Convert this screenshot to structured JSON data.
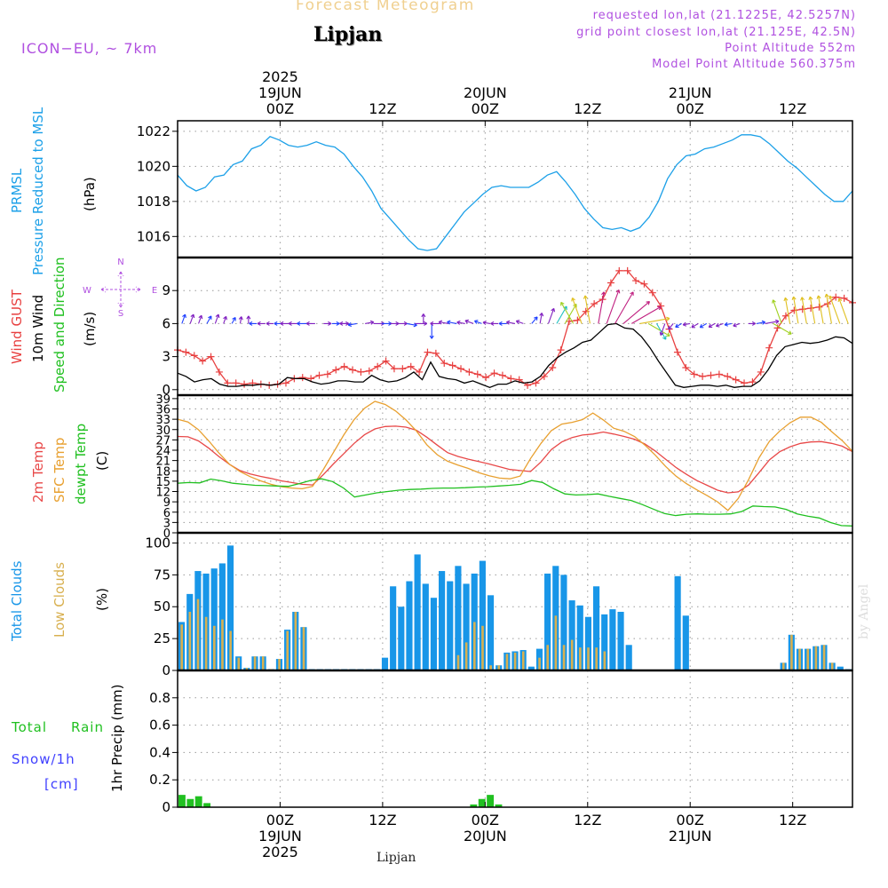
{
  "header": {
    "title": "Forecast Meteogram",
    "location": "Lipjan",
    "model": "ICON−EU, ~ 7km",
    "requested": "requested lon,lat (21.1225E, 42.5257N)",
    "grid_point": "grid point closest lon,lat (21.125E, 42.5N)",
    "point_altitude": "Point Altitude 552m",
    "model_altitude": "Model Point Altitude 560.375m"
  },
  "footer": {
    "location": "Lipjan",
    "watermark": "by Angel"
  },
  "time_axis": {
    "top": [
      {
        "lines": [
          "2025",
          "19JUN",
          "00Z"
        ],
        "pos": 6
      },
      {
        "lines": [
          "12Z"
        ],
        "pos": 18
      },
      {
        "lines": [
          "20JUN",
          "00Z"
        ],
        "pos": 30
      },
      {
        "lines": [
          "12Z"
        ],
        "pos": 42
      },
      {
        "lines": [
          "21JUN",
          "00Z"
        ],
        "pos": 54
      },
      {
        "lines": [
          "12Z"
        ],
        "pos": 66
      }
    ],
    "bottom": [
      {
        "lines": [
          "00Z",
          "19JUN",
          "2025"
        ],
        "pos": 6
      },
      {
        "lines": [
          "12Z"
        ],
        "pos": 18
      },
      {
        "lines": [
          "00Z",
          "20JUN"
        ],
        "pos": 30
      },
      {
        "lines": [
          "12Z"
        ],
        "pos": 42
      },
      {
        "lines": [
          "00Z",
          "21JUN"
        ],
        "pos": 54
      },
      {
        "lines": [
          "12Z"
        ],
        "pos": 66
      }
    ]
  },
  "colors": {
    "pressure": "#1ca0e8",
    "gust": "#e84040",
    "wind": "#000000",
    "temp2m": "#e84848",
    "sfc": "#e8a030",
    "dew": "#20c020",
    "total_clouds": "#1896e8",
    "low_clouds": "#d8b050",
    "rain": "#20c020",
    "snow": "#4040ff",
    "label_purple": "#b050e0"
  },
  "chart_data": [
    {
      "type": "line",
      "panel": "pressure",
      "labels": {
        "line1": "PRMSL",
        "line2": "Pressure Reduced to MSL",
        "unit": "(hPa)"
      },
      "ylim": [
        1014.8,
        1022.6
      ],
      "yticks": [
        1016,
        1018,
        1020,
        1022
      ],
      "x_hours_from": -6,
      "series": [
        {
          "name": "PRMSL",
          "color": "#1ca0e8",
          "values": [
            1019.5,
            1018.9,
            1018.6,
            1018.8,
            1019.4,
            1019.5,
            1020.1,
            1020.3,
            1021.0,
            1021.2,
            1021.7,
            1021.5,
            1021.2,
            1021.1,
            1021.2,
            1021.4,
            1021.2,
            1021.1,
            1020.7,
            1020.0,
            1019.4,
            1018.6,
            1017.6,
            1017.0,
            1016.4,
            1015.8,
            1015.3,
            1015.2,
            1015.3,
            1016.0,
            1016.7,
            1017.4,
            1017.9,
            1018.4,
            1018.8,
            1018.9,
            1018.8,
            1018.8,
            1018.8,
            1019.1,
            1019.5,
            1019.7,
            1019.1,
            1018.4,
            1017.6,
            1017.0,
            1016.5,
            1016.4,
            1016.5,
            1016.3,
            1016.5,
            1017.1,
            1018.0,
            1019.3,
            1020.1,
            1020.6,
            1020.7,
            1021.0,
            1021.1,
            1021.3,
            1021.5,
            1021.8,
            1021.8,
            1021.7,
            1021.3,
            1020.8,
            1020.3,
            1019.9,
            1019.4,
            1018.9,
            1018.4,
            1018.0,
            1018.0,
            1018.6
          ]
        }
      ],
      "grid": true
    },
    {
      "type": "line",
      "panel": "wind",
      "labels": {
        "gust": "Wind GUST",
        "wind": "10m Wind",
        "speed": "Speed and Direction",
        "unit": "(m/s)"
      },
      "ylim": [
        -0.5,
        12
      ],
      "yticks": [
        0,
        3,
        6,
        9
      ],
      "x_hours_from": -6,
      "series": [
        {
          "name": "Wind GUST",
          "color": "#e84040",
          "values": [
            3.6,
            3.4,
            3.1,
            2.6,
            3.0,
            1.6,
            0.6,
            0.6,
            0.5,
            0.6,
            0.5,
            0.4,
            0.5,
            0.6,
            1.0,
            1.1,
            1.0,
            1.3,
            1.4,
            1.8,
            2.1,
            1.8,
            1.6,
            1.7,
            2.1,
            2.6,
            1.9,
            1.9,
            2.1,
            1.6,
            3.4,
            3.3,
            2.4,
            2.2,
            1.9,
            1.6,
            1.4,
            1.1,
            1.5,
            1.3,
            1.0,
            0.9,
            0.4,
            0.6,
            1.2,
            2.0,
            3.6,
            6.2,
            6.3,
            7.1,
            7.8,
            8.2,
            9.7,
            10.8,
            10.8,
            9.9,
            9.6,
            8.8,
            7.6,
            5.5,
            3.4,
            2.0,
            1.4,
            1.2,
            1.3,
            1.4,
            1.2,
            0.9,
            0.6,
            0.7,
            1.6,
            3.8,
            5.6,
            6.7,
            7.2,
            7.3,
            7.4,
            7.5,
            7.8,
            8.4,
            8.3,
            7.9
          ]
        },
        {
          "name": "10m Wind",
          "color": "#000000",
          "values": [
            1.5,
            1.2,
            0.7,
            0.9,
            1.0,
            0.5,
            0.3,
            0.3,
            0.4,
            0.4,
            0.5,
            0.4,
            0.5,
            1.1,
            1.0,
            1.0,
            0.7,
            0.5,
            0.6,
            0.8,
            0.8,
            0.7,
            0.7,
            1.3,
            0.9,
            0.7,
            0.8,
            1.1,
            1.6,
            0.9,
            2.5,
            1.2,
            1.0,
            0.9,
            0.6,
            0.8,
            0.5,
            0.2,
            0.5,
            0.5,
            0.8,
            0.6,
            0.7,
            1.2,
            2.2,
            2.9,
            3.4,
            3.8,
            4.3,
            4.5,
            5.2,
            5.9,
            6.0,
            5.6,
            5.5,
            4.8,
            3.8,
            2.6,
            1.5,
            0.4,
            0.2,
            0.3,
            0.4,
            0.4,
            0.3,
            0.4,
            0.2,
            0.3,
            0.3,
            0.8,
            1.8,
            3.1,
            3.9,
            4.1,
            4.3,
            4.2,
            4.3,
            4.5,
            4.8,
            4.7,
            4.2
          ]
        }
      ],
      "barbs": {
        "count": 81,
        "direction_deg": [
          200,
          200,
          200,
          210,
          200,
          200,
          210,
          190,
          180,
          90,
          90,
          90,
          90,
          90,
          90,
          90,
          90,
          270,
          270,
          270,
          90,
          80,
          260,
          270,
          270,
          270,
          270,
          280,
          270,
          180,
          0,
          90,
          100,
          100,
          100,
          110,
          110,
          100,
          90,
          90,
          100,
          110,
          220,
          190,
          200,
          210,
          210,
          150,
          160,
          170,
          190,
          200,
          210,
          230,
          240,
          260,
          300,
          330,
          20,
          40,
          60,
          80,
          60,
          60,
          60,
          70,
          80,
          70,
          270,
          260,
          260,
          300,
          160,
          170,
          170,
          170,
          170,
          170,
          170,
          160,
          160
        ],
        "speed": [
          1.0,
          1.0,
          0.8,
          0.8,
          1.0,
          0.6,
          0.5,
          0.5,
          0.6,
          0.6,
          0.6,
          0.5,
          0.6,
          1.0,
          1.0,
          1.0,
          0.8,
          0.6,
          0.6,
          0.8,
          0.8,
          0.8,
          0.8,
          1.2,
          1.0,
          0.8,
          0.8,
          1.1,
          1.4,
          1.0,
          2.0,
          1.0,
          1.0,
          1.0,
          0.7,
          0.8,
          0.6,
          0.5,
          0.6,
          0.6,
          0.8,
          0.6,
          0.8,
          1.2,
          2.2,
          2.9,
          3.4,
          3.8,
          4.3,
          4.5,
          5.2,
          5.9,
          6.0,
          5.6,
          5.5,
          4.8,
          3.8,
          2.6,
          1.5,
          0.6,
          0.5,
          0.5,
          0.6,
          0.6,
          0.5,
          0.6,
          0.5,
          0.5,
          0.5,
          0.8,
          1.8,
          3.1,
          3.9,
          4.1,
          4.3,
          4.2,
          4.3,
          4.5,
          4.8,
          4.7,
          4.2
        ],
        "compass": {
          "n": "N",
          "s": "S",
          "w": "W",
          "e": "E"
        }
      }
    },
    {
      "type": "line",
      "panel": "temperature",
      "labels": {
        "t2m": "2m Temp",
        "sfc": "SFC Temp",
        "dew": "dewpt Temp",
        "unit": "(C)"
      },
      "ylim": [
        0,
        40
      ],
      "yticks": [
        0,
        3,
        6,
        9,
        12,
        15,
        18,
        21,
        24,
        27,
        30,
        33,
        36,
        39
      ],
      "x_hours_from": -6,
      "series": [
        {
          "name": "2m Temp",
          "color": "#e84848",
          "values": [
            28.0,
            27.9,
            26.7,
            24.6,
            22.1,
            19.9,
            18.1,
            17.1,
            16.4,
            15.8,
            15.1,
            14.6,
            14.1,
            13.9,
            16.8,
            20.0,
            23.0,
            26.0,
            28.5,
            30.2,
            30.9,
            31.0,
            30.7,
            29.8,
            27.8,
            25.5,
            23.3,
            22.2,
            21.4,
            20.7,
            20.0,
            19.2,
            18.4,
            18.1,
            17.8,
            20.6,
            24.2,
            26.4,
            27.7,
            28.4,
            28.7,
            29.3,
            28.7,
            28.0,
            27.2,
            25.8,
            23.8,
            21.4,
            19.0,
            17.0,
            15.2,
            13.8,
            12.4,
            11.6,
            11.9,
            13.9,
            17.5,
            21.2,
            23.6,
            25.0,
            26.0,
            26.4,
            26.5,
            26.0,
            25.2,
            23.6
          ]
        },
        {
          "name": "SFC Temp",
          "color": "#e8a030",
          "values": [
            33.0,
            32.2,
            30.0,
            26.7,
            23.1,
            19.9,
            17.8,
            16.3,
            15.1,
            14.1,
            13.4,
            13.0,
            12.8,
            13.5,
            18.2,
            23.3,
            28.4,
            32.9,
            36.2,
            38.2,
            37.3,
            35.4,
            32.8,
            29.6,
            25.6,
            22.7,
            20.8,
            19.7,
            18.7,
            17.5,
            16.6,
            15.9,
            15.7,
            16.5,
            21.6,
            26.0,
            29.7,
            31.6,
            32.1,
            32.9,
            34.8,
            32.8,
            30.4,
            29.5,
            28.0,
            25.5,
            22.6,
            19.3,
            16.5,
            14.3,
            12.5,
            10.8,
            9.0,
            6.5,
            10.0,
            15.5,
            21.8,
            26.6,
            29.6,
            32.0,
            33.6,
            33.6,
            32.1,
            29.4,
            26.8,
            23.7
          ]
        },
        {
          "name": "dewpt Temp",
          "color": "#20c020",
          "values": [
            14.4,
            14.6,
            14.5,
            15.6,
            15.1,
            14.4,
            14.1,
            13.8,
            13.7,
            13.6,
            13.5,
            14.3,
            15.2,
            15.7,
            14.9,
            13.0,
            10.4,
            11.0,
            11.6,
            12.0,
            12.4,
            12.6,
            12.7,
            12.9,
            13.0,
            13.0,
            13.1,
            13.3,
            13.4,
            13.6,
            13.8,
            14.1,
            15.2,
            14.6,
            12.8,
            11.3,
            11.0,
            11.1,
            11.3,
            10.6,
            10.0,
            9.4,
            8.2,
            6.9,
            5.6,
            5.0,
            5.4,
            5.5,
            5.4,
            5.4,
            5.5,
            6.2,
            7.8,
            7.6,
            7.5,
            6.8,
            5.5,
            4.8,
            4.3,
            3.0,
            2.1,
            2.0
          ]
        }
      ],
      "grid": true
    },
    {
      "type": "bar",
      "panel": "clouds",
      "labels": {
        "total": "Total Clouds",
        "low": "Low Clouds",
        "unit": "(%)"
      },
      "ylim": [
        0,
        108
      ],
      "yticks": [
        0,
        25,
        50,
        75,
        100
      ],
      "x_hours_from": -6,
      "series": [
        {
          "name": "Total Clouds",
          "color": "#1896e8",
          "values": [
            38,
            60,
            78,
            76,
            80,
            84,
            98,
            11,
            2,
            11,
            11,
            1,
            9,
            32,
            46,
            34,
            1,
            1,
            1,
            1,
            1,
            1,
            1,
            1,
            1,
            10,
            66,
            50,
            70,
            91,
            68,
            57,
            78,
            70,
            82,
            68,
            76,
            86,
            59,
            4,
            14,
            15,
            16,
            3,
            17,
            76,
            82,
            75,
            55,
            51,
            42,
            66,
            44,
            48,
            46,
            20,
            0,
            0,
            0,
            0,
            0,
            74,
            43,
            0,
            0,
            0,
            0,
            0,
            0,
            0,
            0,
            0,
            0,
            0,
            6,
            28,
            17,
            17,
            19,
            20,
            6,
            3,
            1
          ]
        },
        {
          "name": "Low Clouds",
          "color": "#d8b050",
          "values": [
            36,
            46,
            56,
            42,
            35,
            40,
            31,
            10,
            2,
            11,
            11,
            1,
            9,
            31,
            46,
            34,
            0,
            0,
            0,
            0,
            0,
            0,
            0,
            0,
            0,
            0,
            0,
            0,
            0,
            0,
            0,
            0,
            0,
            0,
            12,
            22,
            38,
            35,
            4,
            4,
            13,
            14,
            15,
            0,
            10,
            20,
            43,
            20,
            24,
            18,
            18,
            18,
            15,
            0,
            0,
            0,
            0,
            0,
            0,
            0,
            0,
            0,
            0,
            0,
            0,
            0,
            0,
            0,
            0,
            0,
            0,
            0,
            0,
            0,
            6,
            28,
            17,
            17,
            19,
            20,
            6,
            0,
            0
          ]
        }
      ],
      "grid": true
    },
    {
      "type": "bar",
      "panel": "precip",
      "labels": {
        "total": "Total",
        "rain": "Rain",
        "snow": "Snow/1h",
        "cm": "[cm]",
        "axis": "1hr Precip (mm)"
      },
      "ylim": [
        0,
        1.0
      ],
      "yticks": [
        0,
        0.2,
        0.4,
        0.6,
        0.8
      ],
      "ytick_labels": [
        "0",
        "0.2",
        "0.4",
        "0.6",
        "0.8"
      ],
      "x_hours_from": -6,
      "series": [
        {
          "name": "Rain",
          "color": "#20c020",
          "values": [
            0.09,
            0.06,
            0.08,
            0.03,
            0,
            0,
            0,
            0,
            0,
            0,
            0,
            0,
            0,
            0,
            0,
            0,
            0,
            0,
            0,
            0,
            0,
            0,
            0,
            0,
            0,
            0,
            0,
            0,
            0,
            0,
            0,
            0,
            0,
            0,
            0,
            0.02,
            0.06,
            0.09,
            0.02,
            0,
            0,
            0,
            0,
            0,
            0,
            0,
            0,
            0,
            0,
            0,
            0,
            0,
            0,
            0,
            0,
            0,
            0,
            0,
            0,
            0,
            0,
            0,
            0,
            0,
            0,
            0,
            0,
            0,
            0,
            0,
            0,
            0,
            0,
            0,
            0,
            0,
            0,
            0,
            0,
            0,
            0
          ]
        }
      ],
      "grid": true
    }
  ]
}
